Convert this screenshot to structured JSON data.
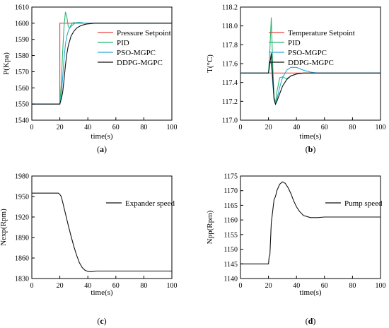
{
  "chart_data": [
    {
      "type": "line",
      "panel_label": "(a)",
      "panel_letter": "a",
      "xlabel": "time(s)",
      "ylabel": "P(Kpa)",
      "xlim": [
        0,
        100
      ],
      "ylim": [
        1540,
        1610
      ],
      "xticks": [
        0,
        20,
        40,
        60,
        80,
        100
      ],
      "yticks": [
        1540,
        1550,
        1560,
        1570,
        1580,
        1590,
        1600,
        1610
      ],
      "legend_position": "right",
      "series": [
        {
          "name": "Pressure Setpoint",
          "color": "#e8413c",
          "x": [
            0,
            20,
            20,
            100
          ],
          "y": [
            1550,
            1550,
            1600,
            1600
          ]
        },
        {
          "name": "PID",
          "color": "#2bb573",
          "x": [
            0,
            20,
            21,
            22,
            23,
            24,
            25,
            26,
            27,
            28,
            29,
            30,
            32,
            35,
            40,
            100
          ],
          "y": [
            1550,
            1550,
            1562,
            1582,
            1598,
            1607,
            1604,
            1598,
            1597,
            1599,
            1600,
            1600.5,
            1600,
            1600,
            1600,
            1600
          ]
        },
        {
          "name": "PSO-MGPC",
          "color": "#2aa7d6",
          "x": [
            0,
            20,
            21,
            22,
            23,
            24,
            25,
            26,
            27,
            28,
            30,
            32,
            35,
            38,
            40,
            100
          ],
          "y": [
            1550,
            1550,
            1555,
            1566,
            1578,
            1587,
            1592,
            1595,
            1597,
            1598,
            1599.5,
            1600.5,
            1600.5,
            1600,
            1600,
            1600
          ]
        },
        {
          "name": "DDPG-MGPC",
          "color": "#111111",
          "x": [
            0,
            20,
            21,
            22,
            23,
            24,
            25,
            26,
            28,
            30,
            32,
            35,
            38,
            40,
            45,
            50,
            100
          ],
          "y": [
            1550,
            1550,
            1553,
            1557,
            1565,
            1574,
            1581,
            1586,
            1592,
            1595,
            1597,
            1598.5,
            1599.3,
            1599.6,
            1600,
            1600,
            1600
          ]
        }
      ]
    },
    {
      "type": "line",
      "panel_label": "(b)",
      "panel_letter": "b",
      "xlabel": "time(s)",
      "ylabel": "T(°C)",
      "xlim": [
        0,
        100
      ],
      "ylim": [
        117.0,
        118.2
      ],
      "xticks": [
        0,
        20,
        40,
        60,
        80,
        100
      ],
      "yticks": [
        117.0,
        117.2,
        117.4,
        117.6,
        117.8,
        118.0,
        118.2
      ],
      "legend_position": "right",
      "series": [
        {
          "name": "Temperature Setpoint",
          "color": "#e8413c",
          "x": [
            0,
            100
          ],
          "y": [
            117.5,
            117.5
          ]
        },
        {
          "name": "PID",
          "color": "#2bb573",
          "x": [
            0,
            20,
            21,
            22,
            23,
            24,
            25,
            26,
            28,
            30,
            33,
            36,
            40,
            45,
            50,
            100
          ],
          "y": [
            117.5,
            117.5,
            117.75,
            118.09,
            117.6,
            117.25,
            117.18,
            117.3,
            117.45,
            117.46,
            117.44,
            117.47,
            117.49,
            117.5,
            117.5,
            117.5
          ]
        },
        {
          "name": "PSO-MGPC",
          "color": "#2aa7d6",
          "x": [
            0,
            20,
            21,
            22,
            23,
            24,
            25,
            26,
            28,
            30,
            33,
            36,
            40,
            45,
            50,
            55,
            60,
            100
          ],
          "y": [
            117.5,
            117.5,
            117.62,
            117.6,
            117.4,
            117.22,
            117.17,
            117.22,
            117.35,
            117.45,
            117.53,
            117.56,
            117.56,
            117.53,
            117.51,
            117.5,
            117.5,
            117.5
          ]
        },
        {
          "name": "DDPG-MGPC",
          "color": "#111111",
          "x": [
            0,
            20,
            21,
            22,
            23,
            24,
            25,
            26,
            28,
            30,
            33,
            36,
            40,
            45,
            50,
            55,
            100
          ],
          "y": [
            117.5,
            117.5,
            117.6,
            117.71,
            117.45,
            117.22,
            117.17,
            117.2,
            117.28,
            117.36,
            117.43,
            117.47,
            117.49,
            117.5,
            117.5,
            117.5,
            117.5
          ]
        }
      ]
    },
    {
      "type": "line",
      "panel_label": "(c)",
      "panel_letter": "c",
      "xlabel": "time(s)",
      "ylabel": "Nexp(Rpm)",
      "xlim": [
        0,
        100
      ],
      "ylim": [
        1830,
        1980
      ],
      "xticks": [
        0,
        20,
        40,
        60,
        80,
        100
      ],
      "yticks": [
        1830,
        1860,
        1890,
        1920,
        1950,
        1980
      ],
      "legend_position": "right",
      "series": [
        {
          "name": "Expander speed",
          "color": "#111111",
          "x": [
            0,
            19,
            20,
            21,
            22,
            24,
            26,
            28,
            30,
            32,
            34,
            36,
            38,
            40,
            42,
            44,
            46,
            50,
            100
          ],
          "y": [
            1955,
            1955,
            1953,
            1950,
            1942,
            1925,
            1908,
            1892,
            1877,
            1864,
            1853,
            1846,
            1842,
            1840.5,
            1840,
            1840.5,
            1841,
            1841,
            1841
          ]
        }
      ]
    },
    {
      "type": "line",
      "panel_label": "(d)",
      "panel_letter": "d",
      "xlabel": "time(s)",
      "ylabel": "Npp(Rpm)",
      "xlim": [
        0,
        100
      ],
      "ylim": [
        1140,
        1175
      ],
      "xticks": [
        0,
        20,
        40,
        60,
        80,
        100
      ],
      "yticks": [
        1140,
        1145,
        1150,
        1155,
        1160,
        1165,
        1170,
        1175
      ],
      "legend_position": "right",
      "series": [
        {
          "name": "Pump speed",
          "color": "#111111",
          "x": [
            0,
            20,
            20.5,
            21,
            22,
            23,
            24,
            25,
            26,
            28,
            30,
            32,
            34,
            36,
            38,
            40,
            42,
            45,
            50,
            55,
            60,
            100
          ],
          "y": [
            1145,
            1145,
            1147.5,
            1148,
            1159,
            1163,
            1167,
            1168,
            1170,
            1172.2,
            1173,
            1172.5,
            1171,
            1169,
            1166.5,
            1164.5,
            1163,
            1161.5,
            1160.8,
            1160.8,
            1161,
            1161
          ]
        }
      ]
    }
  ]
}
